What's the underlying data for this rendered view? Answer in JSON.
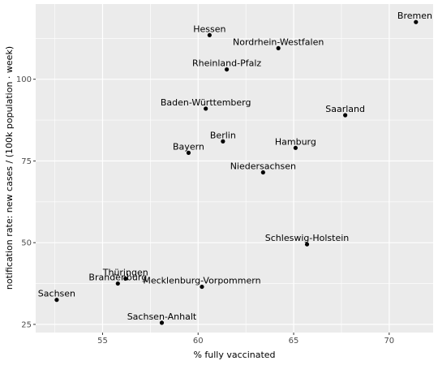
{
  "chart_data": {
    "type": "scatter",
    "title": "",
    "xlabel": "% fully vaccinated",
    "ylabel": "notification rate: new cases / (100k population · week)",
    "xlim": [
      51.5,
      72.3
    ],
    "ylim": [
      22.5,
      123
    ],
    "xticks": [
      55,
      60,
      65,
      70
    ],
    "yticks": [
      25,
      50,
      75,
      100
    ],
    "grid": true,
    "background": "#ebebeb",
    "grid_color": "#ffffff",
    "point_color": "#000000",
    "points": [
      {
        "label": "Bremen",
        "x": 71.4,
        "y": 117.5
      },
      {
        "label": "Hessen",
        "x": 60.6,
        "y": 113.5
      },
      {
        "label": "Nordrhein-Westfalen",
        "x": 64.2,
        "y": 109.5
      },
      {
        "label": "Rheinland-Pfalz",
        "x": 61.5,
        "y": 103.0
      },
      {
        "label": "Baden-Württemberg",
        "x": 60.4,
        "y": 91.0
      },
      {
        "label": "Saarland",
        "x": 67.7,
        "y": 89.0
      },
      {
        "label": "Berlin",
        "x": 61.3,
        "y": 81.0
      },
      {
        "label": "Hamburg",
        "x": 65.1,
        "y": 79.0
      },
      {
        "label": "Bayern",
        "x": 59.5,
        "y": 77.5
      },
      {
        "label": "Niedersachsen",
        "x": 63.4,
        "y": 71.5
      },
      {
        "label": "Schleswig-Holstein",
        "x": 65.7,
        "y": 49.5
      },
      {
        "label": "Thüringen",
        "x": 56.2,
        "y": 39.0
      },
      {
        "label": "Brandenburg",
        "x": 55.8,
        "y": 37.5
      },
      {
        "label": "Mecklenburg-Vorpommern",
        "x": 60.2,
        "y": 36.5
      },
      {
        "label": "Sachsen",
        "x": 52.6,
        "y": 32.5
      },
      {
        "label": "Sachsen-Anhalt",
        "x": 58.1,
        "y": 25.5
      }
    ]
  }
}
